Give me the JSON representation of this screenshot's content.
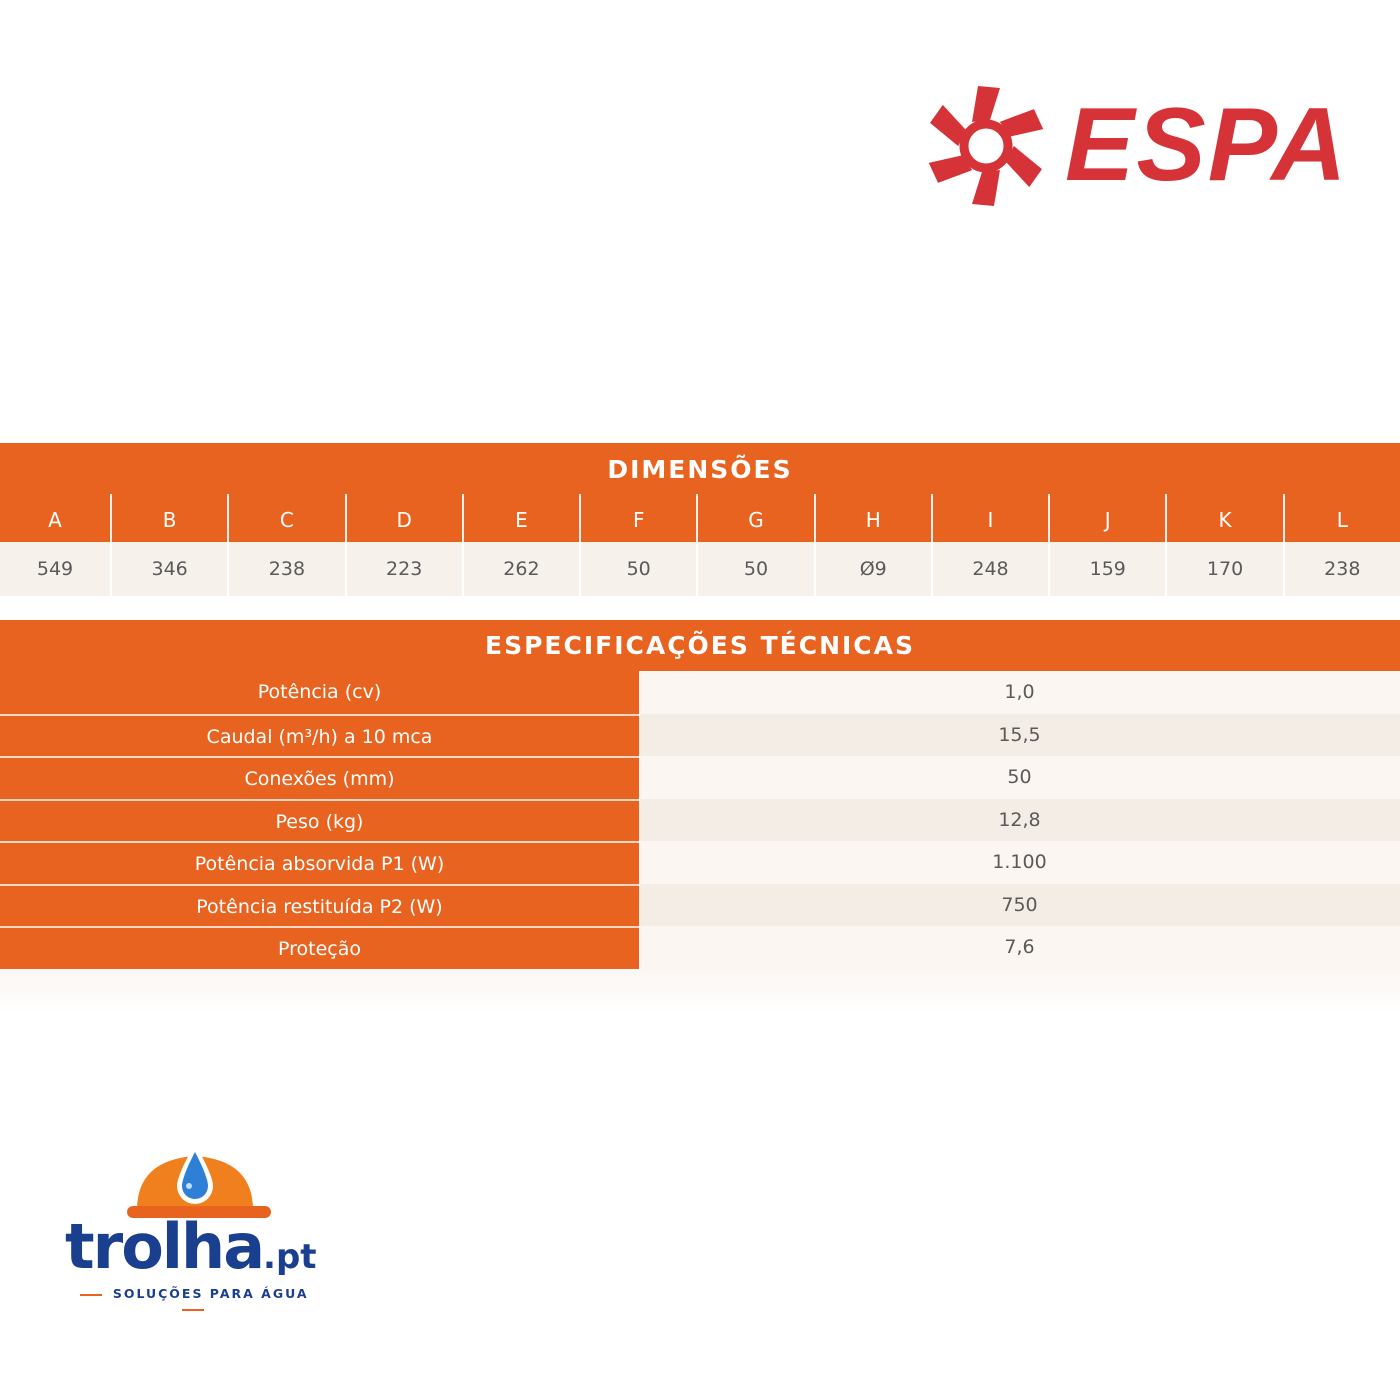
{
  "brand": {
    "name": "ESPA",
    "color": "#d63339"
  },
  "dimensions": {
    "title": "DIMENSÕES",
    "headers": [
      "A",
      "B",
      "C",
      "D",
      "E",
      "F",
      "G",
      "H",
      "I",
      "J",
      "K",
      "L"
    ],
    "values": [
      "549",
      "346",
      "238",
      "223",
      "262",
      "50",
      "50",
      "Ø9",
      "248",
      "159",
      "170",
      "238"
    ]
  },
  "specs": {
    "title": "ESPECIFICAÇÕES TÉCNICAS",
    "rows": [
      {
        "label": "Potência (cv)",
        "value": "1,0"
      },
      {
        "label": "Caudal (m³/h) a 10 mca",
        "value": "15,5"
      },
      {
        "label": "Conexões (mm)",
        "value": "50"
      },
      {
        "label": "Peso (kg)",
        "value": "12,8"
      },
      {
        "label": "Potência absorvida P1 (W)",
        "value": "1.100"
      },
      {
        "label": "Potência restituída P2 (W)",
        "value": "750"
      },
      {
        "label": "Proteção",
        "value": "7,6"
      }
    ]
  },
  "footer_logo": {
    "name": "trolha",
    "suffix": ".pt",
    "tagline": "SOLUÇÕES PARA ÁGUA"
  },
  "colors": {
    "accent": "#e8631f",
    "row_light": "#f7f1ec",
    "trolha_blue": "#1b3f8f"
  }
}
